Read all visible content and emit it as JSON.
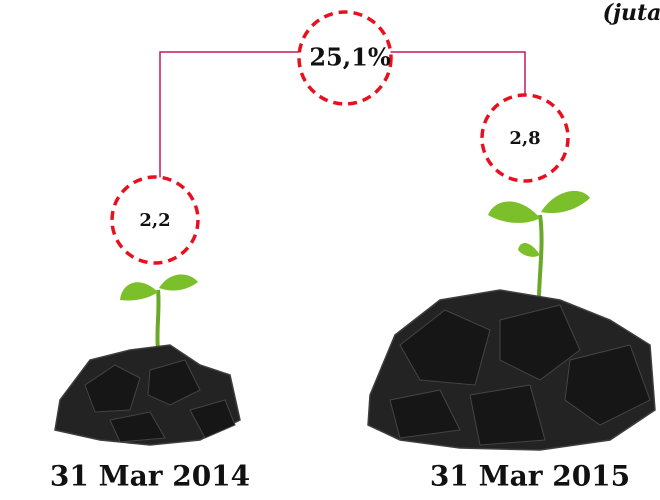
{
  "header": {
    "note": "(juta"
  },
  "callouts": [
    {
      "label": "2,2"
    },
    {
      "label": "2,8"
    }
  ],
  "growth": {
    "label": "25,1%"
  },
  "dates": [
    "31 Mar 2014",
    "31 Mar 2015"
  ]
}
